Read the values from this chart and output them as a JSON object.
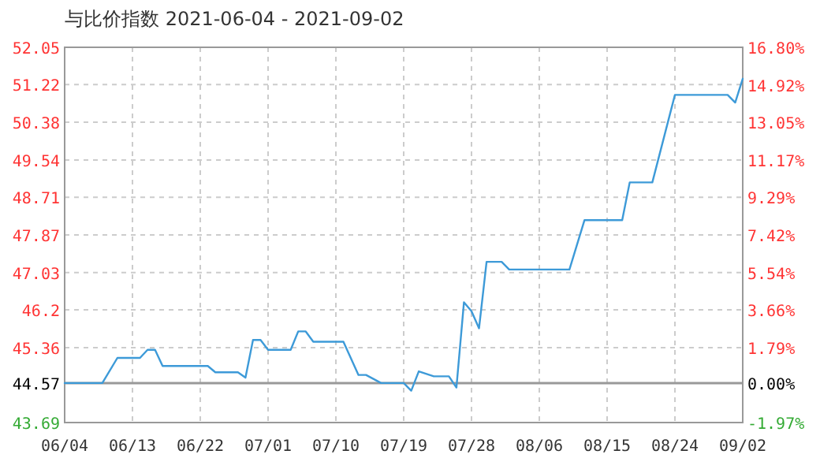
{
  "chart_data": {
    "type": "line",
    "title": "与比价指数 2021-06-04 - 2021-09-02",
    "x": [
      "2021-06-04",
      "2021-06-09",
      "2021-06-11",
      "2021-06-14",
      "2021-06-15",
      "2021-06-16",
      "2021-06-17",
      "2021-06-23",
      "2021-06-24",
      "2021-06-27",
      "2021-06-28",
      "2021-06-29",
      "2021-06-30",
      "2021-07-01",
      "2021-07-04",
      "2021-07-05",
      "2021-07-06",
      "2021-07-07",
      "2021-07-11",
      "2021-07-13",
      "2021-07-14",
      "2021-07-16",
      "2021-07-19",
      "2021-07-20",
      "2021-07-21",
      "2021-07-23",
      "2021-07-25",
      "2021-07-26",
      "2021-07-27",
      "2021-07-28",
      "2021-07-29",
      "2021-07-30",
      "2021-08-01",
      "2021-08-02",
      "2021-08-10",
      "2021-08-12",
      "2021-08-17",
      "2021-08-18",
      "2021-08-21",
      "2021-08-24",
      "2021-08-31",
      "2021-09-01",
      "2021-09-02"
    ],
    "series": [
      {
        "color": "#3d9ad8",
        "values": [
          44.57,
          44.57,
          45.13,
          45.13,
          45.31,
          45.31,
          44.95,
          44.95,
          44.81,
          44.81,
          44.69,
          45.53,
          45.53,
          45.31,
          45.31,
          45.72,
          45.72,
          45.49,
          45.49,
          44.75,
          44.75,
          44.57,
          44.57,
          44.4,
          44.83,
          44.72,
          44.72,
          44.47,
          46.37,
          46.17,
          45.79,
          47.27,
          47.27,
          47.1,
          47.1,
          48.2,
          48.2,
          49.04,
          49.04,
          50.99,
          50.99,
          50.82,
          51.35
        ]
      }
    ],
    "xlim": [
      "2021-06-04",
      "2021-09-02"
    ],
    "xticks": [
      {
        "value": "2021-06-04",
        "label": "06/04"
      },
      {
        "value": "2021-06-13",
        "label": "06/13"
      },
      {
        "value": "2021-06-22",
        "label": "06/22"
      },
      {
        "value": "2021-07-01",
        "label": "07/01"
      },
      {
        "value": "2021-07-10",
        "label": "07/10"
      },
      {
        "value": "2021-07-19",
        "label": "07/19"
      },
      {
        "value": "2021-07-28",
        "label": "07/28"
      },
      {
        "value": "2021-08-06",
        "label": "08/06"
      },
      {
        "value": "2021-08-15",
        "label": "08/15"
      },
      {
        "value": "2021-08-24",
        "label": "08/24"
      },
      {
        "value": "2021-09-02",
        "label": "09/02"
      }
    ],
    "ylim": [
      43.69,
      52.05
    ],
    "yticks": [
      43.69,
      44.57,
      45.36,
      46.2,
      47.03,
      47.87,
      48.71,
      49.54,
      50.38,
      51.22,
      52.05
    ],
    "y2lim": [
      -1.97,
      16.8
    ],
    "y2ticks": [
      {
        "value": -1.97,
        "label": "-1.97%"
      },
      {
        "value": 0,
        "label": "0.00%"
      },
      {
        "value": 1.79,
        "label": "1.79%"
      },
      {
        "value": 3.66,
        "label": "3.66%"
      },
      {
        "value": 5.54,
        "label": "5.54%"
      },
      {
        "value": 7.42,
        "label": "7.42%"
      },
      {
        "value": 9.29,
        "label": "9.29%"
      },
      {
        "value": 11.17,
        "label": "11.17%"
      },
      {
        "value": 13.05,
        "label": "13.05%"
      },
      {
        "value": 14.92,
        "label": "14.92%"
      },
      {
        "value": 16.8,
        "label": "16.80%"
      }
    ],
    "ref_lines": [
      {
        "axis": "y",
        "value": 44.57,
        "color": "#999999"
      }
    ],
    "grid": true,
    "line_style": "solid",
    "marker": "none"
  }
}
